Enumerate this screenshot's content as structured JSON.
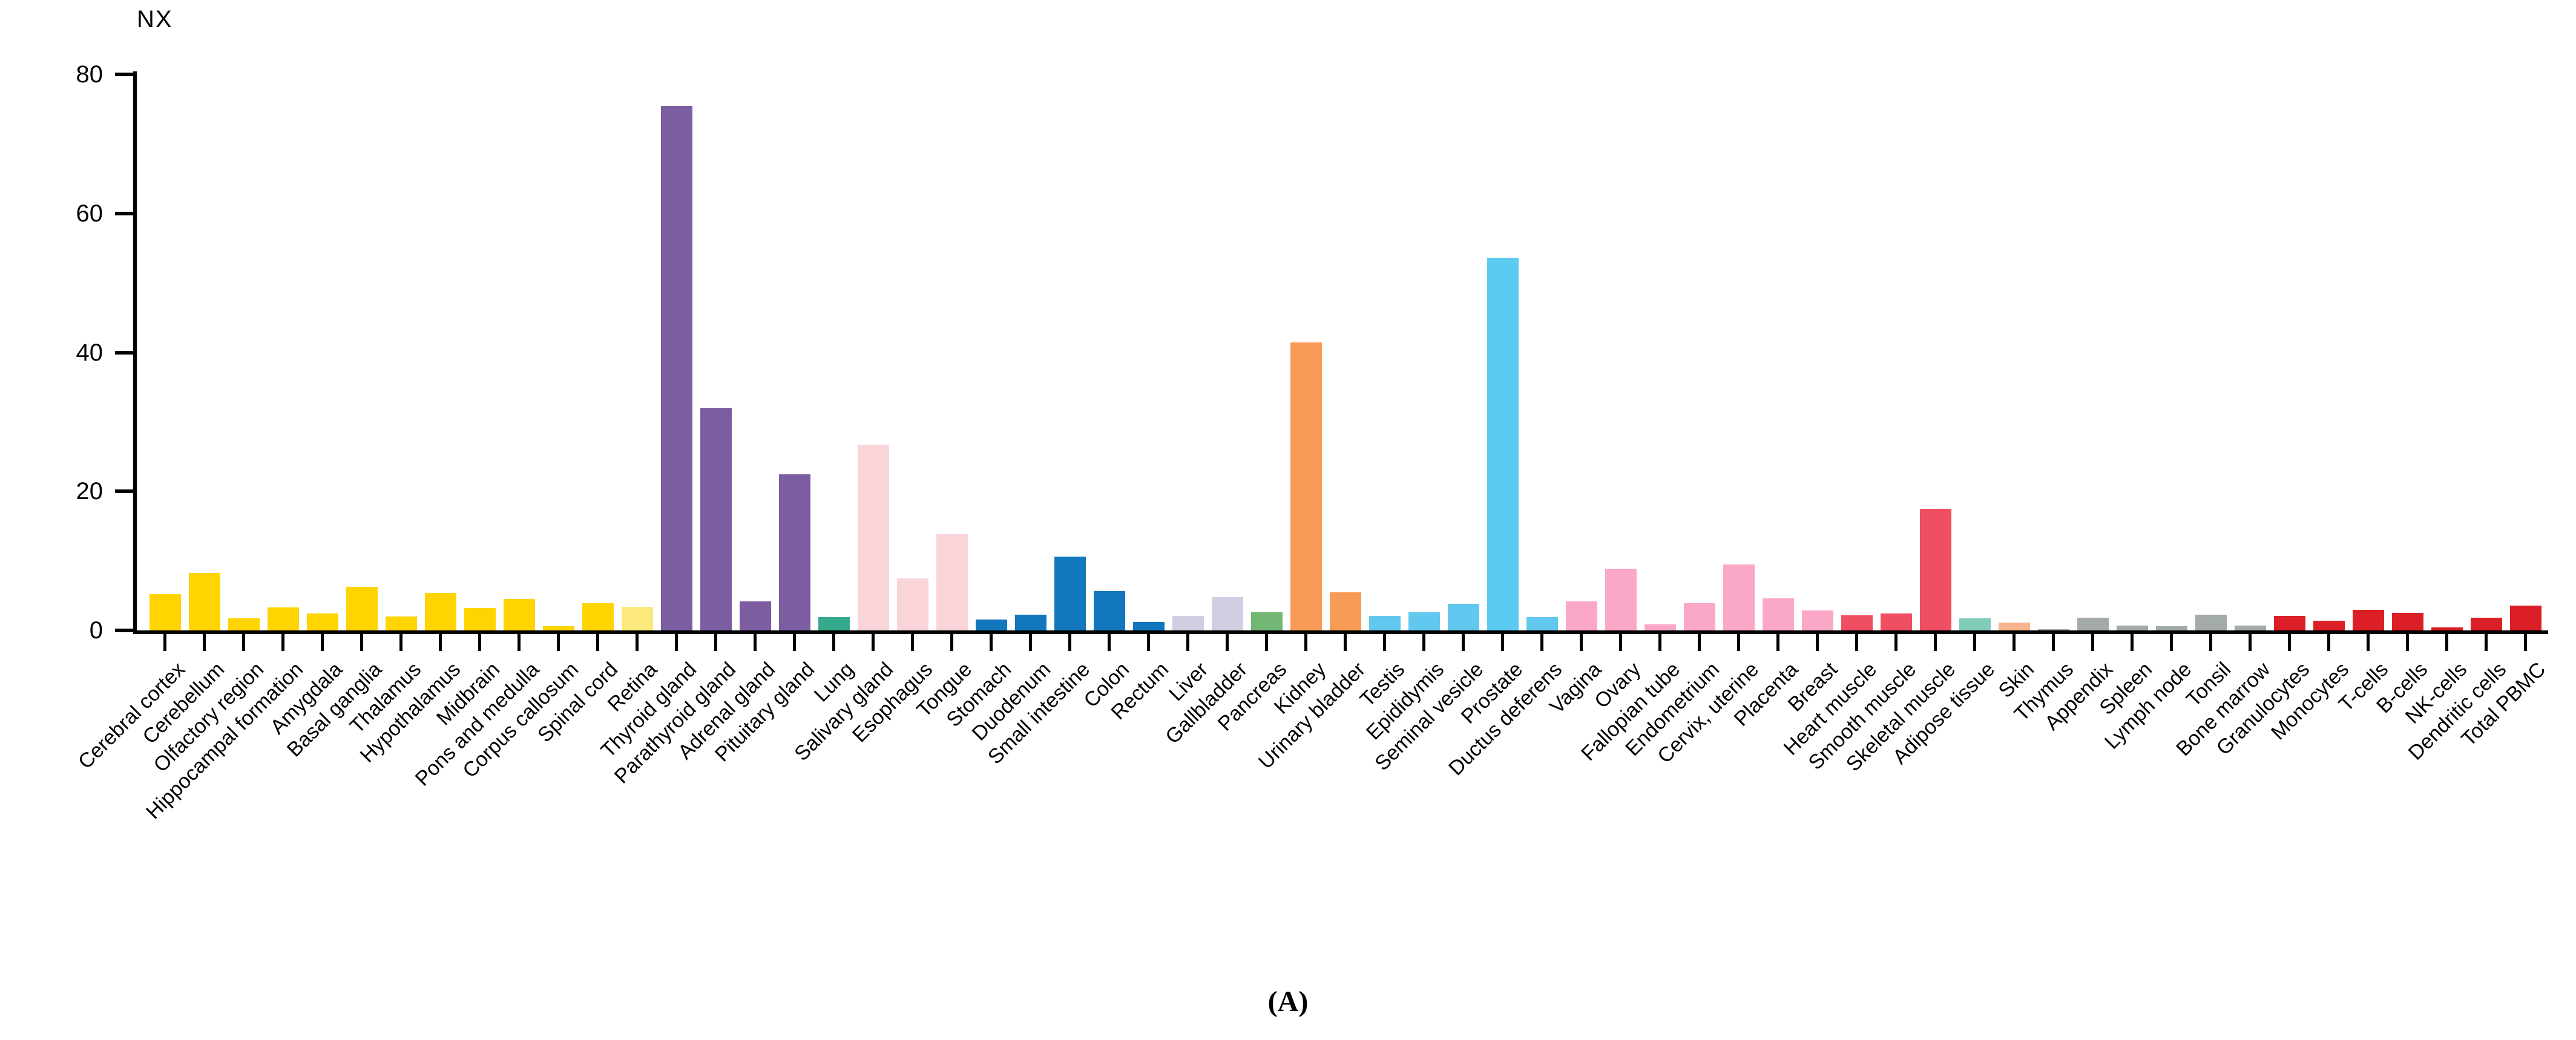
{
  "chart_data": {
    "type": "bar",
    "title": "",
    "xlabel": "",
    "ylabel": "NX",
    "ylim": [
      0,
      80
    ],
    "yticks": [
      0,
      20,
      40,
      60,
      80
    ],
    "grid": "off",
    "legend": "none",
    "categories": [
      "Cerebral cortex",
      "Cerebellum",
      "Olfactory region",
      "Hippocampal formation",
      "Amygdala",
      "Basal ganglia",
      "Thalamus",
      "Hypothalamus",
      "Midbrain",
      "Pons and medulla",
      "Corpus callosum",
      "Spinal cord",
      "Retina",
      "Thyroid gland",
      "Parathyroid gland",
      "Adrenal gland",
      "Pituitary gland",
      "Lung",
      "Salivary gland",
      "Esophagus",
      "Tongue",
      "Stomach",
      "Duodenum",
      "Small intestine",
      "Colon",
      "Rectum",
      "Liver",
      "Gallbladder",
      "Pancreas",
      "Kidney",
      "Urinary bladder",
      "Testis",
      "Epididymis",
      "Seminal vesicle",
      "Prostate",
      "Ductus deferens",
      "Vagina",
      "Ovary",
      "Fallopian tube",
      "Endometrium",
      "Cervix, uterine",
      "Placenta",
      "Breast",
      "Heart muscle",
      "Smooth muscle",
      "Skeletal muscle",
      "Adipose tissue",
      "Skin",
      "Thymus",
      "Appendix",
      "Spleen",
      "Lymph node",
      "Tonsil",
      "Bone marrow",
      "Granulocytes",
      "Monocytes",
      "T-cells",
      "B-cells",
      "NK-cells",
      "Dendritic cells",
      "Total PBMC"
    ],
    "values": [
      5.2,
      8.3,
      1.7,
      3.3,
      2.4,
      6.3,
      2.0,
      5.4,
      3.2,
      4.5,
      0.6,
      3.9,
      3.4,
      75.5,
      32.0,
      4.2,
      22.5,
      1.9,
      26.7,
      7.5,
      13.8,
      1.6,
      2.3,
      10.6,
      5.7,
      1.2,
      2.1,
      4.8,
      2.6,
      41.4,
      5.5,
      2.1,
      2.6,
      3.8,
      53.6,
      1.9,
      4.2,
      8.9,
      0.9,
      3.9,
      9.5,
      4.6,
      2.9,
      2.2,
      2.4,
      17.5,
      1.7,
      1.1,
      0.2,
      1.8,
      0.7,
      0.6,
      2.3,
      0.7,
      2.1,
      1.4,
      3.0,
      2.5,
      0.4,
      1.8,
      3.6
    ],
    "colors": [
      "#FFD400",
      "#FFD400",
      "#FFD400",
      "#FFD400",
      "#FFD400",
      "#FFD400",
      "#FFD400",
      "#FFD400",
      "#FFD400",
      "#FFD400",
      "#FFD400",
      "#FFD400",
      "#FCE97C",
      "#7C5DA1",
      "#7C5DA1",
      "#7C5DA1",
      "#7C5DA1",
      "#35A98C",
      "#F9D5DA",
      "#F9D5DA",
      "#F9D5DA",
      "#1277BD",
      "#1277BD",
      "#1277BD",
      "#1277BD",
      "#1277BD",
      "#D3CDE3",
      "#D3CDE3",
      "#72B774",
      "#F89B56",
      "#F89B56",
      "#62C8EF",
      "#62C8EF",
      "#62C8EF",
      "#5CCBF2",
      "#62C8EF",
      "#FBA7C8",
      "#FBA7C8",
      "#FBA7C8",
      "#FBA7C8",
      "#FBA7C8",
      "#FBA7C8",
      "#FBA7C8",
      "#F04E63",
      "#F04E63",
      "#F04E63",
      "#7FCDB8",
      "#F9B590",
      "#A2ABA8",
      "#A2ABA8",
      "#A2ABA8",
      "#A2ABA8",
      "#A2ABA8",
      "#A2ABA8",
      "#DC1F26",
      "#DC1F26",
      "#DC1F26",
      "#DC1F26",
      "#DC1F26",
      "#DC1F26",
      "#DC1F26"
    ],
    "axis_color": "#000000",
    "background_color": "#ffffff"
  },
  "caption": "(A)"
}
